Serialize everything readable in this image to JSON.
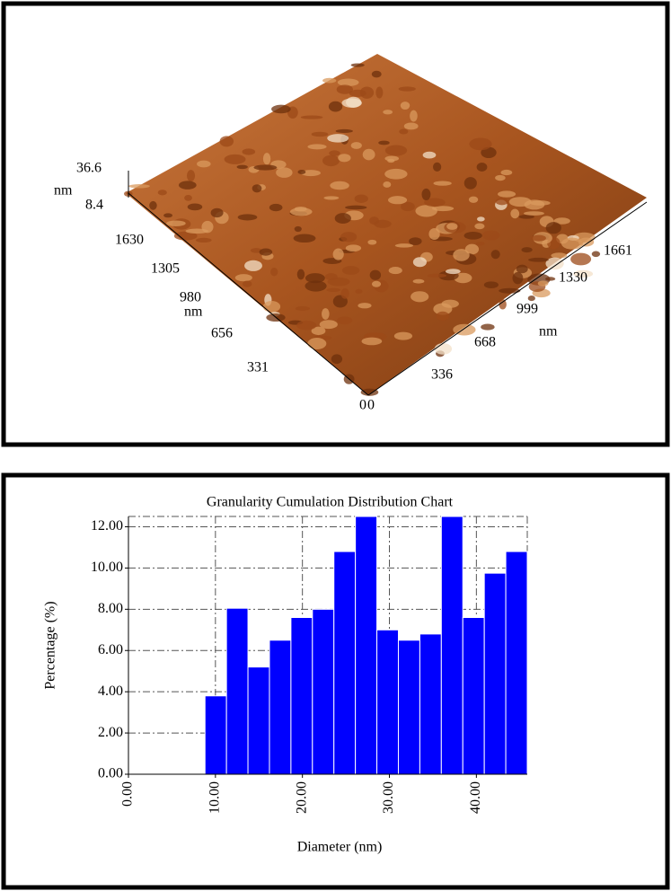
{
  "afm_image": {
    "z_labels": [
      36.6,
      8.4
    ],
    "z_unit": "nm",
    "y_axis_labels": [
      1630,
      1305,
      980,
      656,
      331,
      0
    ],
    "y_unit": "nm",
    "x_axis_labels": [
      0,
      336,
      668,
      999,
      1330,
      1661
    ],
    "x_unit": "nm"
  },
  "chart_data": {
    "type": "histogram",
    "title": "Granularity Cumulation Distribution Chart",
    "x_label": "Diameter (nm)",
    "y_label": "Percentage (%)",
    "bins": [
      8.8,
      11.27,
      13.74,
      16.21,
      18.68,
      21.15,
      23.62,
      26.09,
      28.56,
      31.03,
      33.5,
      35.97,
      38.44,
      40.91,
      43.38,
      45.85
    ],
    "values": [
      3.8,
      8.05,
      5.2,
      6.5,
      7.6,
      8.0,
      10.8,
      12.5,
      7.0,
      6.5,
      6.8,
      12.5,
      7.6,
      9.75,
      10.8
    ],
    "color": "#0000ff",
    "xlim": [
      0,
      45.85
    ],
    "ylim": [
      0,
      12.5
    ],
    "xticks": [
      {
        "value": 0,
        "label": "0.00"
      },
      {
        "value": 10,
        "label": "10.00"
      },
      {
        "value": 20,
        "label": "20.00"
      },
      {
        "value": 30,
        "label": "30.00"
      },
      {
        "value": 40,
        "label": "40.00"
      }
    ],
    "yticks": [
      {
        "value": 0,
        "label": "0.00"
      },
      {
        "value": 2,
        "label": "2.00"
      },
      {
        "value": 4,
        "label": "4.00"
      },
      {
        "value": 6,
        "label": "6.00"
      },
      {
        "value": 8,
        "label": "8.00"
      },
      {
        "value": 10,
        "label": "10.00"
      },
      {
        "value": 12,
        "label": "12.00"
      }
    ],
    "grid": true
  }
}
